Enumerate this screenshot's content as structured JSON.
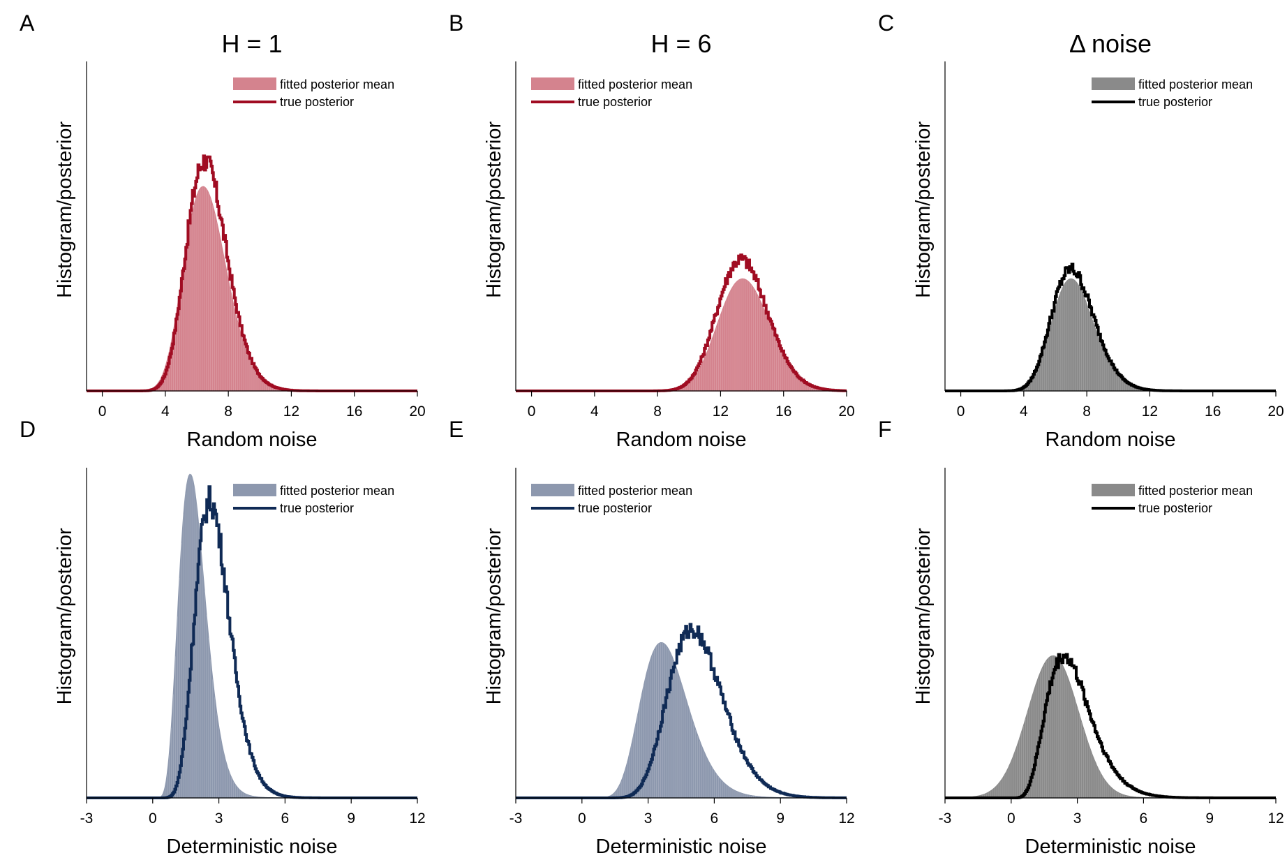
{
  "colors": {
    "red_fill": "#d4838e",
    "red_line": "#a00c22",
    "blue_fill": "#8d98ae",
    "blue_line": "#0f2a55",
    "gray_fill": "#8a8a8a",
    "black_line": "#000000"
  },
  "column_titles": [
    "H = 1",
    "H = 6",
    "Δ noise"
  ],
  "legend": {
    "fitted": "fitted posterior mean",
    "true": "true posterior"
  },
  "chart_data": [
    {
      "id": "A",
      "type": "area",
      "letter": "A",
      "xlabel": "Random noise",
      "ylabel": "Histogram/posterior",
      "xlim": [
        -1,
        20
      ],
      "xticks": [
        0,
        4,
        8,
        12,
        16,
        20
      ],
      "fill_color": "#d4838e",
      "line_color": "#a00c22",
      "series": [
        {
          "name": "fitted posterior mean",
          "kind": "gamma",
          "mode": 6.4,
          "scale": 0.28,
          "shape": 24,
          "peak": 0.62
        },
        {
          "name": "true posterior",
          "kind": "gamma",
          "mode": 6.5,
          "scale": 0.27,
          "shape": 24,
          "peak": 0.7
        }
      ]
    },
    {
      "id": "B",
      "type": "area",
      "letter": "B",
      "xlabel": "Random noise",
      "ylabel": "Histogram/posterior",
      "xlim": [
        -1,
        20
      ],
      "xticks": [
        0,
        4,
        8,
        12,
        16,
        20
      ],
      "fill_color": "#d4838e",
      "line_color": "#a00c22",
      "series": [
        {
          "name": "fitted posterior mean",
          "kind": "gamma",
          "mode": 13.4,
          "scale": 0.2,
          "shape": 68,
          "peak": 0.34
        },
        {
          "name": "true posterior",
          "kind": "gamma",
          "mode": 13.3,
          "scale": 0.19,
          "shape": 72,
          "peak": 0.4
        }
      ]
    },
    {
      "id": "C",
      "type": "area",
      "letter": "C",
      "xlabel": "Random noise",
      "ylabel": "Histogram/posterior",
      "xlim": [
        -1,
        20
      ],
      "xticks": [
        0,
        4,
        8,
        12,
        16,
        20
      ],
      "fill_color": "#8a8a8a",
      "line_color": "#000000",
      "series": [
        {
          "name": "fitted posterior mean",
          "kind": "gamma",
          "mode": 7.0,
          "scale": 0.25,
          "shape": 29,
          "peak": 0.34
        },
        {
          "name": "true posterior",
          "kind": "gamma",
          "mode": 7.0,
          "scale": 0.26,
          "shape": 28,
          "peak": 0.37
        }
      ]
    },
    {
      "id": "D",
      "type": "area",
      "letter": "D",
      "xlabel": "Deterministic noise",
      "ylabel": "Histogram/posterior",
      "xlim": [
        -3,
        12
      ],
      "xticks": [
        -3,
        0,
        3,
        6,
        9,
        12
      ],
      "fill_color": "#8d98ae",
      "line_color": "#0f2a55",
      "series": [
        {
          "name": "fitted posterior mean",
          "kind": "gamma",
          "mode": 1.7,
          "scale": 0.22,
          "shape": 8.7,
          "peak": 0.98
        },
        {
          "name": "true posterior",
          "kind": "gamma",
          "mode": 2.6,
          "scale": 0.24,
          "shape": 11.8,
          "peak": 0.9
        }
      ]
    },
    {
      "id": "E",
      "type": "area",
      "letter": "E",
      "xlabel": "Deterministic noise",
      "ylabel": "Histogram/posterior",
      "xlim": [
        -3,
        12
      ],
      "xticks": [
        -3,
        0,
        3,
        6,
        9,
        12
      ],
      "fill_color": "#8d98ae",
      "line_color": "#0f2a55",
      "series": [
        {
          "name": "fitted posterior mean",
          "kind": "gamma",
          "mode": 3.6,
          "scale": 0.32,
          "shape": 12.2,
          "peak": 0.47
        },
        {
          "name": "true posterior",
          "kind": "gamma",
          "mode": 5.0,
          "scale": 0.31,
          "shape": 17.1,
          "peak": 0.51
        }
      ]
    },
    {
      "id": "F",
      "type": "area",
      "letter": "F",
      "xlabel": "Deterministic noise",
      "ylabel": "Histogram/posterior",
      "xlim": [
        -3,
        12
      ],
      "xticks": [
        -3,
        0,
        3,
        6,
        9,
        12
      ],
      "fill_color": "#8a8a8a",
      "line_color": "#000000",
      "series": [
        {
          "name": "fitted posterior mean",
          "kind": "gauss",
          "mean": 1.9,
          "sd": 1.15,
          "peak": 0.43
        },
        {
          "name": "true posterior",
          "kind": "gamma",
          "mode": 2.4,
          "scale": 0.42,
          "shape": 6.7,
          "peak": 0.43
        }
      ]
    }
  ]
}
